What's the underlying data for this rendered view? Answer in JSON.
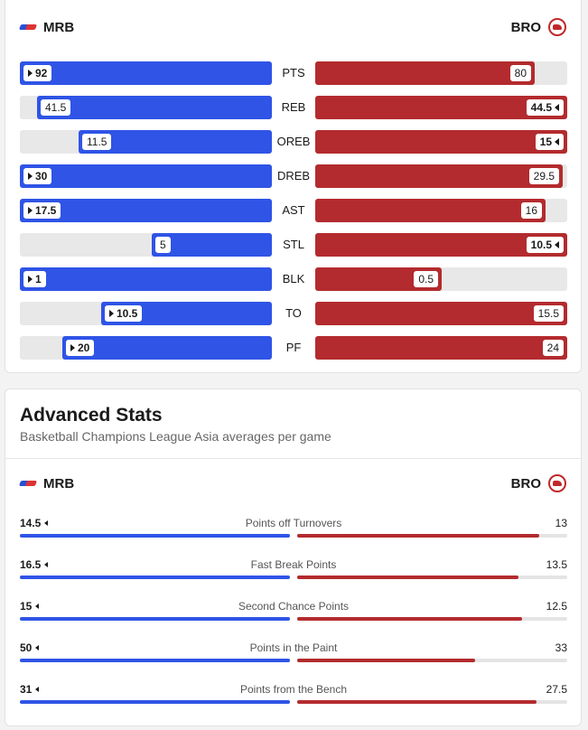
{
  "teams": {
    "left": "MRB",
    "right": "BRO"
  },
  "colors": {
    "left": "#2f54e6",
    "right": "#b32b2e"
  },
  "comparison": [
    {
      "label": "PTS",
      "left": "92",
      "right": "80",
      "left_pct": 1.0,
      "right_pct": 0.87,
      "winner": "left"
    },
    {
      "label": "REB",
      "left": "41.5",
      "right": "44.5",
      "left_pct": 0.933,
      "right_pct": 1.0,
      "winner": "right"
    },
    {
      "label": "OREB",
      "left": "11.5",
      "right": "15",
      "left_pct": 0.767,
      "right_pct": 1.0,
      "winner": "right"
    },
    {
      "label": "DREB",
      "left": "30",
      "right": "29.5",
      "left_pct": 1.0,
      "right_pct": 0.983,
      "winner": "left"
    },
    {
      "label": "AST",
      "left": "17.5",
      "right": "16",
      "left_pct": 1.0,
      "right_pct": 0.914,
      "winner": "left"
    },
    {
      "label": "STL",
      "left": "5",
      "right": "10.5",
      "left_pct": 0.476,
      "right_pct": 1.0,
      "winner": "right"
    },
    {
      "label": "BLK",
      "left": "1",
      "right": "0.5",
      "left_pct": 1.0,
      "right_pct": 0.5,
      "winner": "left"
    },
    {
      "label": "TO",
      "left": "10.5",
      "right": "15.5",
      "left_pct": 0.677,
      "right_pct": 1.0,
      "winner": "left"
    },
    {
      "label": "PF",
      "left": "20",
      "right": "24",
      "left_pct": 0.833,
      "right_pct": 1.0,
      "winner": "left"
    }
  ],
  "advanced": {
    "title": "Advanced Stats",
    "subtitle": "Basketball Champions League Asia averages per game",
    "rows": [
      {
        "label": "Points off Turnovers",
        "left": "14.5",
        "right": "13",
        "left_pct": 1.0,
        "right_pct": 0.897
      },
      {
        "label": "Fast Break Points",
        "left": "16.5",
        "right": "13.5",
        "left_pct": 1.0,
        "right_pct": 0.818
      },
      {
        "label": "Second Chance Points",
        "left": "15",
        "right": "12.5",
        "left_pct": 1.0,
        "right_pct": 0.833
      },
      {
        "label": "Points in the Paint",
        "left": "50",
        "right": "33",
        "left_pct": 1.0,
        "right_pct": 0.66
      },
      {
        "label": "Points from the Bench",
        "left": "31",
        "right": "27.5",
        "left_pct": 1.0,
        "right_pct": 0.887
      }
    ]
  }
}
